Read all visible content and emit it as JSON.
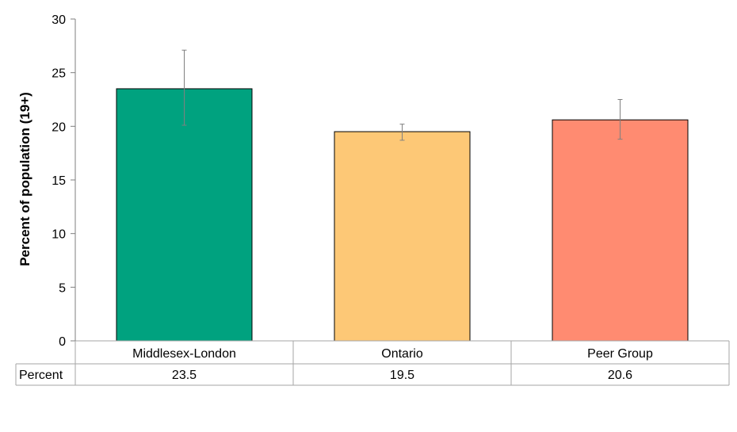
{
  "chart_data": {
    "type": "bar",
    "title": "",
    "xlabel": "",
    "ylabel": "Percent of population (19+)",
    "ylim": [
      0,
      30
    ],
    "yticks": [
      0,
      5,
      10,
      15,
      20,
      25,
      30
    ],
    "categories": [
      "Middlesex-London",
      "Ontario",
      "Peer Group"
    ],
    "values": [
      23.5,
      19.5,
      20.6
    ],
    "error_low": [
      20.1,
      18.7,
      18.8
    ],
    "error_high": [
      27.1,
      20.2,
      22.5
    ],
    "colors": [
      "#00A27F",
      "#FDC876",
      "#FF8B71"
    ],
    "grid": false,
    "legend": "none",
    "data_table": {
      "row_label": "Percent",
      "values": [
        "23.5",
        "19.5",
        "20.6"
      ]
    }
  }
}
